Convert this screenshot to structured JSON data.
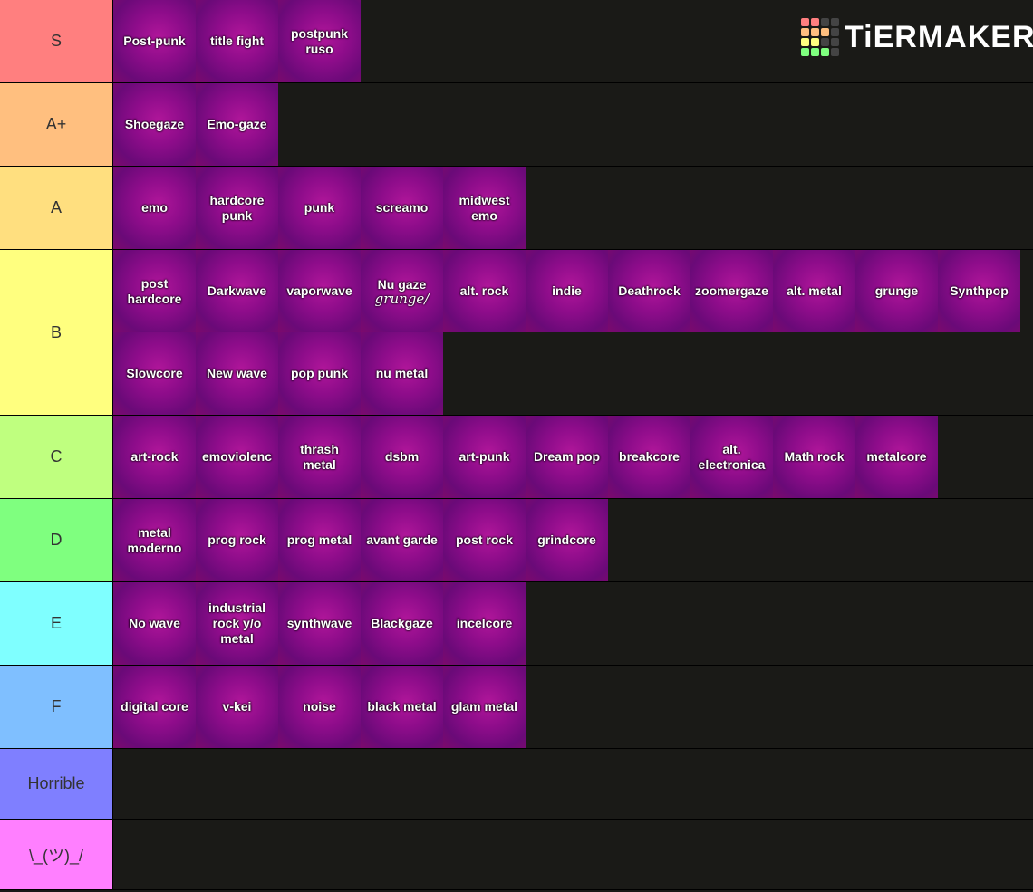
{
  "logo": "TiERMAKER",
  "tiers": [
    {
      "label": "S",
      "color": "#ff7f7f",
      "items": [
        "Post-punk",
        "title fight",
        "postpunk ruso"
      ]
    },
    {
      "label": "A+",
      "color": "#ffbf7f",
      "items": [
        "Shoegaze",
        "Emo-gaze"
      ]
    },
    {
      "label": "A",
      "color": "#ffdf7f",
      "items": [
        "emo",
        "hardcore punk",
        "punk",
        "screamo",
        "midwest emo"
      ]
    },
    {
      "label": "B",
      "color": "#ffff7f",
      "items": [
        "post hardcore",
        "Darkwave",
        "vaporwave",
        {
          "label": "Nu gaze",
          "note": "grunge/"
        },
        "alt. rock",
        "indie",
        "Deathrock",
        "zoomergaze",
        "alt. metal",
        "grunge",
        "Synthpop",
        "Slowcore",
        "New wave",
        "pop punk",
        "nu metal"
      ]
    },
    {
      "label": "C",
      "color": "#bfff7f",
      "items": [
        "art-rock",
        "emoviolenc",
        "thrash metal",
        "dsbm",
        "art-punk",
        "Dream pop",
        "breakcore",
        "alt. electronica",
        "Math rock",
        "metalcore"
      ]
    },
    {
      "label": "D",
      "color": "#7fff7f",
      "items": [
        "metal moderno",
        "prog rock",
        "prog metal",
        "avant garde",
        "post rock",
        "grindcore"
      ]
    },
    {
      "label": "E",
      "color": "#7fffff",
      "items": [
        "No wave",
        "industrial rock y/o metal",
        "synthwave",
        "Blackgaze",
        "incelcore"
      ]
    },
    {
      "label": "F",
      "color": "#7fbfff",
      "items": [
        "digital core",
        "v-kei",
        "noise",
        "black metal",
        "glam metal"
      ]
    },
    {
      "label": "Horrible",
      "color": "#7f7fff",
      "items": []
    },
    {
      "label": "¯\\_(ツ)_/¯",
      "color": "#ff7fff",
      "items": []
    }
  ]
}
